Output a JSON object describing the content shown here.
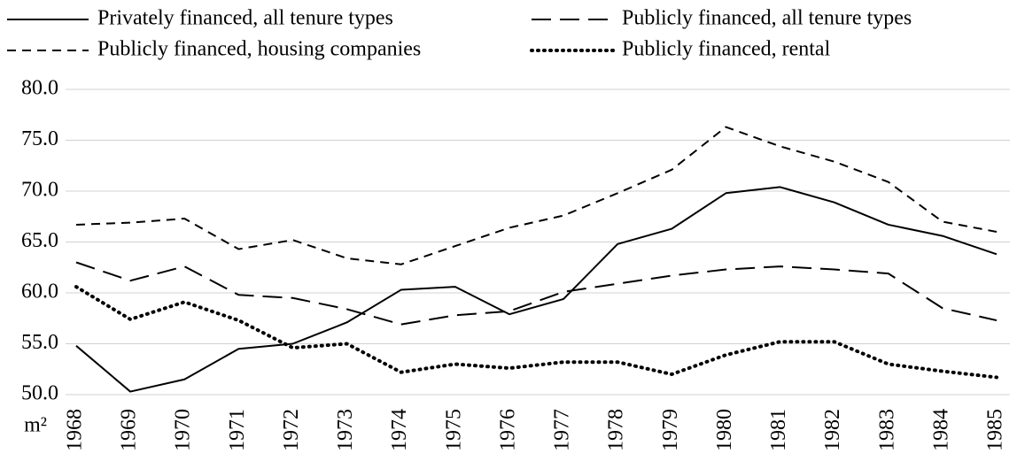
{
  "chart_data": {
    "type": "line",
    "y_label": "m²",
    "categories": [
      "1968",
      "1969",
      "1970",
      "1971",
      "1972",
      "1973",
      "1974",
      "1975",
      "1976",
      "1977",
      "1978",
      "1979",
      "1980",
      "1981",
      "1982",
      "1983",
      "1984",
      "1985"
    ],
    "ylim": [
      50,
      80
    ],
    "yticks": [
      {
        "value": 50,
        "label": "50.0"
      },
      {
        "value": 55,
        "label": "55.0"
      },
      {
        "value": 60,
        "label": "60.0"
      },
      {
        "value": 65,
        "label": "65.0"
      },
      {
        "value": 70,
        "label": "70.0"
      },
      {
        "value": 75,
        "label": "75.0"
      },
      {
        "value": 80,
        "label": "80.0"
      }
    ],
    "grid": true,
    "legend": "top",
    "series": [
      {
        "name": "Privately financed, all tenure types",
        "color": "#000000",
        "style": "solid",
        "values": [
          54.8,
          50.3,
          51.5,
          54.5,
          55.0,
          57.1,
          60.3,
          60.6,
          57.9,
          59.4,
          64.8,
          66.3,
          69.8,
          70.4,
          68.9,
          66.7,
          65.6,
          63.8
        ]
      },
      {
        "name": "Publicly financed, all tenure types",
        "color": "#000000",
        "style": "longdash",
        "values": [
          63.0,
          61.2,
          62.6,
          59.8,
          59.5,
          58.4,
          56.9,
          57.8,
          58.2,
          60.1,
          60.9,
          61.7,
          62.3,
          62.6,
          62.3,
          61.9,
          58.5,
          57.3
        ]
      },
      {
        "name": "Publicly financed, housing companies",
        "color": "#000000",
        "style": "dash",
        "values": [
          66.7,
          66.9,
          67.3,
          64.3,
          65.2,
          63.4,
          62.8,
          64.6,
          66.4,
          67.6,
          69.8,
          72.1,
          76.3,
          74.4,
          72.9,
          70.9,
          67.0,
          66.0
        ]
      },
      {
        "name": "Publicly financed, rental",
        "color": "#000000",
        "style": "dot",
        "values": [
          60.6,
          57.4,
          59.1,
          57.3,
          54.6,
          55.0,
          52.2,
          53.0,
          52.6,
          53.2,
          53.2,
          52.0,
          53.9,
          55.2,
          55.2,
          53.0,
          52.3,
          51.7
        ]
      }
    ]
  }
}
